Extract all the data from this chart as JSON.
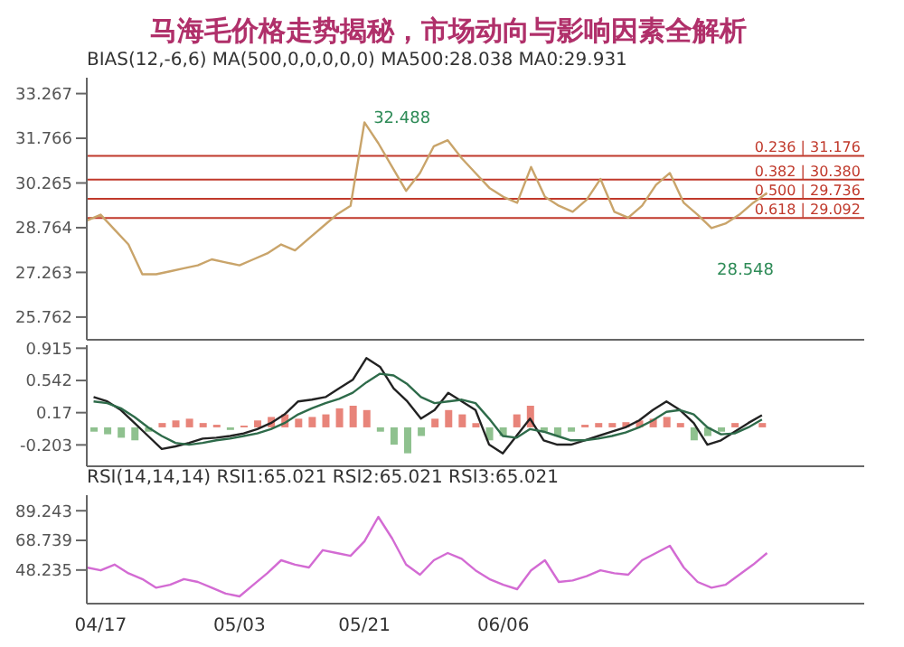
{
  "chart_data": [
    {
      "type": "line",
      "title": "马海毛价格走势揭秘，市场动向与影响因素全解析",
      "subtitle": "BIAS(12,-6,6)  MA(500,0,0,0,0,0)  MA500:28.038  MA0:29.931",
      "categories": [
        null,
        "04/17",
        null,
        null,
        null,
        null,
        null,
        null,
        null,
        null,
        null,
        "05/03",
        null,
        null,
        null,
        null,
        null,
        null,
        null,
        null,
        "05/21",
        null,
        null,
        null,
        null,
        null,
        null,
        null,
        null,
        null,
        "06/06",
        null,
        null,
        null,
        null,
        null,
        null,
        null,
        null,
        null,
        null,
        null,
        null,
        null,
        null,
        null,
        null,
        null,
        null,
        null,
        null,
        null,
        null,
        null,
        null,
        null,
        null
      ],
      "tick_labels": "y",
      "ylim": [
        25,
        33.8
      ],
      "yticks": [
        33.267,
        31.766,
        30.265,
        28.764,
        27.263,
        25.762
      ],
      "series": [
        {
          "color": "#c9a46a",
          "values": [
            29.0,
            29.2,
            28.7,
            28.2,
            27.2,
            27.2,
            27.3,
            27.4,
            27.5,
            27.7,
            27.6,
            27.5,
            27.7,
            27.9,
            28.2,
            28.0,
            28.4,
            28.8,
            29.2,
            29.5,
            32.3,
            31.6,
            30.8,
            30.0,
            30.6,
            31.5,
            31.7,
            31.1,
            30.6,
            30.1,
            29.8,
            29.6,
            30.8,
            29.8,
            29.5,
            29.3,
            29.7,
            30.4,
            29.3,
            29.1,
            29.5,
            30.2,
            30.6,
            29.6,
            29.2,
            28.75,
            28.9,
            29.2,
            29.6,
            29.93,
            null,
            null,
            null,
            null,
            null,
            null,
            null
          ]
        }
      ],
      "ref_lines": [
        {
          "axis": "y",
          "value": 31.176,
          "label": "0.236 | 31.176",
          "color": "#c0392b"
        },
        {
          "axis": "y",
          "value": 30.38,
          "label": "0.382 | 30.380",
          "color": "#c0392b"
        },
        {
          "axis": "y",
          "value": 29.736,
          "label": "0.500 | 29.736",
          "color": "#c0392b"
        },
        {
          "axis": "y",
          "value": 29.092,
          "label": "0.618 | 29.092",
          "color": "#c0392b"
        }
      ],
      "annotations": [
        {
          "text": "32.488",
          "x": "05/21",
          "y": 32.488
        },
        "28.548"
      ]
    },
    {
      "type": "bar",
      "categories": [
        null,
        "04/17",
        null,
        null,
        null,
        null,
        null,
        null,
        null,
        null,
        null,
        "05/03",
        null,
        null,
        null,
        null,
        null,
        null,
        null,
        null,
        "05/21",
        null,
        null,
        null,
        null,
        null,
        null,
        null,
        null,
        null,
        "06/06",
        null,
        null,
        null,
        null,
        null,
        null,
        null,
        null,
        null,
        null,
        null,
        null,
        null,
        null,
        null,
        null,
        null,
        null,
        null,
        null,
        null,
        null,
        null,
        null,
        null,
        null
      ],
      "tick_labels": "y",
      "ylim": [
        -0.45,
        0.95
      ],
      "yticks": [
        0.915,
        0.542,
        0.17,
        -0.203
      ],
      "series": [
        {
          "color": "#e8847a",
          "values": [
            null,
            null,
            null,
            null,
            null,
            0.05,
            0.08,
            0.1,
            0.05,
            0.03,
            null,
            0.02,
            0.08,
            0.12,
            0.15,
            0.1,
            0.12,
            0.15,
            0.22,
            0.25,
            0.2,
            null,
            null,
            null,
            null,
            0.1,
            0.2,
            0.15,
            0.05,
            null,
            null,
            0.15,
            0.25,
            null,
            null,
            null,
            0.03,
            0.05,
            0.05,
            0.06,
            0.08,
            0.1,
            0.12,
            0.05,
            null,
            null,
            null,
            0.05,
            null,
            0.05,
            null,
            null,
            null,
            null,
            null,
            null,
            null
          ]
        },
        {
          "color": "#8fc18f",
          "values": [
            -0.05,
            -0.08,
            -0.12,
            -0.15,
            -0.05,
            null,
            null,
            null,
            null,
            null,
            -0.03,
            null,
            null,
            null,
            null,
            null,
            null,
            null,
            null,
            null,
            null,
            -0.05,
            -0.2,
            -0.3,
            -0.1,
            null,
            null,
            null,
            null,
            -0.15,
            -0.1,
            null,
            null,
            -0.05,
            -0.1,
            -0.05,
            null,
            null,
            null,
            null,
            null,
            null,
            null,
            null,
            -0.15,
            -0.1,
            -0.05,
            null,
            null,
            null,
            null,
            null,
            null,
            null,
            null,
            null,
            null
          ]
        },
        {
          "type": "line",
          "color": "#222222",
          "values": [
            0.35,
            0.3,
            0.2,
            0.05,
            -0.1,
            -0.25,
            -0.22,
            -0.18,
            -0.13,
            -0.12,
            -0.1,
            -0.07,
            -0.02,
            0.05,
            0.15,
            0.3,
            0.32,
            0.35,
            0.45,
            0.55,
            0.8,
            0.7,
            0.45,
            0.3,
            0.1,
            0.2,
            0.4,
            0.3,
            0.2,
            -0.2,
            -0.3,
            -0.1,
            0.1,
            -0.15,
            -0.2,
            -0.2,
            -0.15,
            -0.1,
            -0.05,
            0,
            0.08,
            0.2,
            0.3,
            0.2,
            0.05,
            -0.2,
            -0.15,
            -0.05,
            0.05,
            0.14,
            null,
            null,
            null,
            null,
            null,
            null,
            null
          ]
        },
        {
          "type": "line",
          "color": "#2e6b4a",
          "values": [
            0.3,
            0.28,
            0.22,
            0.12,
            0,
            -0.1,
            -0.18,
            -0.2,
            -0.18,
            -0.15,
            -0.13,
            -0.1,
            -0.07,
            -0.02,
            0.05,
            0.15,
            0.22,
            0.28,
            0.33,
            0.4,
            0.52,
            0.62,
            0.6,
            0.5,
            0.35,
            0.28,
            0.3,
            0.32,
            0.28,
            0.1,
            -0.1,
            -0.12,
            -0.02,
            -0.05,
            -0.1,
            -0.15,
            -0.15,
            -0.13,
            -0.1,
            -0.06,
            0,
            0.08,
            0.18,
            0.2,
            0.15,
            0,
            -0.08,
            -0.07,
            0,
            0.09,
            null,
            null,
            null,
            null,
            null,
            null,
            null
          ]
        }
      ]
    },
    {
      "type": "line",
      "title": "RSI(14,14,14)  RSI1:65.021  RSI2:65.021  RSI3:65.021",
      "categories": [
        null,
        "04/17",
        null,
        null,
        null,
        null,
        null,
        null,
        null,
        null,
        null,
        "05/03",
        null,
        null,
        null,
        null,
        null,
        null,
        null,
        null,
        "05/21",
        null,
        null,
        null,
        null,
        null,
        null,
        null,
        null,
        null,
        "06/06",
        null,
        null,
        null,
        null,
        null,
        null,
        null,
        null,
        null,
        null,
        null,
        null,
        null,
        null,
        null,
        null,
        null,
        null,
        null,
        null,
        null,
        null,
        null,
        null,
        null,
        null
      ],
      "ylim": [
        25,
        100
      ],
      "yticks": [
        89.243,
        68.739,
        48.235
      ],
      "series": [
        {
          "color": "#d36bd3",
          "values": [
            50,
            48,
            52,
            46,
            42,
            36,
            38,
            42,
            40,
            36,
            32,
            30,
            38,
            46,
            55,
            52,
            50,
            62,
            60,
            58,
            68,
            85,
            70,
            52,
            45,
            55,
            60,
            56,
            48,
            42,
            38,
            35,
            48,
            55,
            40,
            41,
            44,
            48,
            46,
            45,
            55,
            60,
            65,
            50,
            40,
            36,
            38,
            45,
            52,
            60,
            null,
            null,
            null,
            null,
            null,
            null,
            null
          ]
        }
      ]
    }
  ]
}
